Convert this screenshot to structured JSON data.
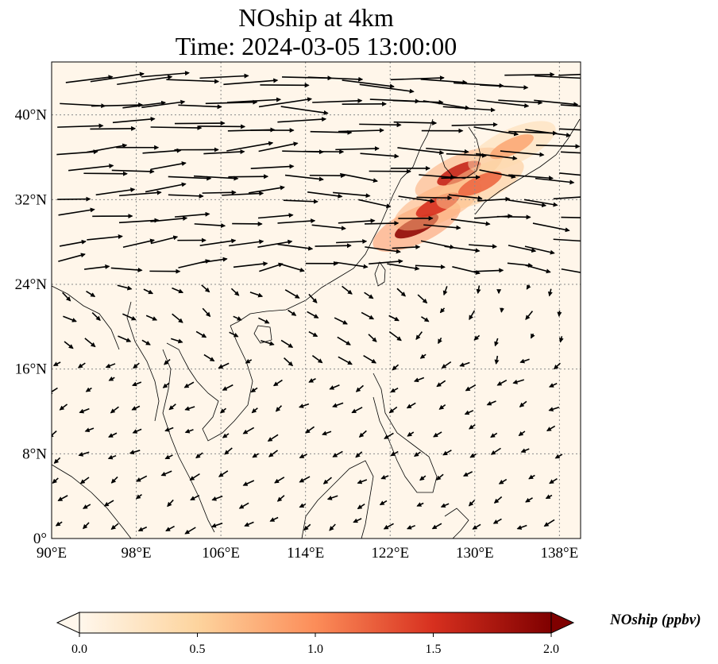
{
  "title": {
    "line1": "NOship at 4km",
    "line2": "Time: 2024-03-05 13:00:00"
  },
  "map": {
    "projection": "PlateCarree",
    "lon_range": [
      90,
      140
    ],
    "lat_range": [
      0,
      45
    ],
    "field": "NOship",
    "gridlines": true,
    "lon_ticks": [
      {
        "value": 90,
        "label": "90°E"
      },
      {
        "value": 98,
        "label": "98°E"
      },
      {
        "value": 106,
        "label": "106°E"
      },
      {
        "value": 114,
        "label": "114°E"
      },
      {
        "value": 122,
        "label": "122°E"
      },
      {
        "value": 130,
        "label": "130°E"
      },
      {
        "value": 138,
        "label": "138°E"
      }
    ],
    "lat_ticks": [
      {
        "value": 0,
        "label": "0°"
      },
      {
        "value": 8,
        "label": "8°N"
      },
      {
        "value": 16,
        "label": "16°N"
      },
      {
        "value": 24,
        "label": "24°N"
      },
      {
        "value": 32,
        "label": "32°N"
      },
      {
        "value": 40,
        "label": "40°N"
      }
    ],
    "wind_vectors": "westerly winds north of ~24°N, weak northeasterly flow in the south",
    "hotspots": [
      {
        "lon": 124.5,
        "lat": 29.5,
        "value": 1.9
      },
      {
        "lon": 126.5,
        "lat": 31.5,
        "value": 1.5
      },
      {
        "lon": 128.5,
        "lat": 34.5,
        "value": 1.6
      },
      {
        "lon": 130.5,
        "lat": 33.5,
        "value": 1.2
      },
      {
        "lon": 133.5,
        "lat": 37.0,
        "value": 0.8
      }
    ]
  },
  "colorbar": {
    "title": "NOship (ppbv)",
    "min": 0.0,
    "max": 2.0,
    "extend": "both",
    "colormap": "OrRd",
    "ticks": [
      "0.0",
      "0.5",
      "1.0",
      "1.5",
      "2.0"
    ]
  }
}
